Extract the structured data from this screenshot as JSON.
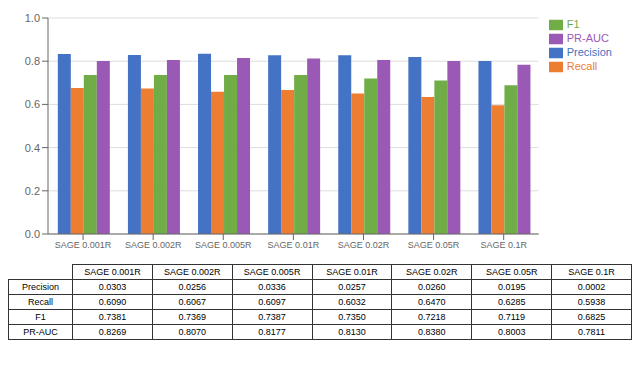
{
  "chart_data": {
    "type": "bar",
    "categories": [
      "SAGE 0.001R",
      "SAGE 0.002R",
      "SAGE 0.005R",
      "SAGE 0.01R",
      "SAGE 0.02R",
      "SAGE 0.05R",
      "SAGE 0.1R"
    ],
    "series": [
      {
        "name": "Precision",
        "color": "#4472c4",
        "values": [
          0.833,
          0.829,
          0.834,
          0.828,
          0.828,
          0.82,
          0.801
        ]
      },
      {
        "name": "Recall",
        "color": "#ed7d31",
        "values": [
          0.676,
          0.674,
          0.659,
          0.667,
          0.65,
          0.634,
          0.596
        ]
      },
      {
        "name": "F1",
        "color": "#70ad47",
        "values": [
          0.736,
          0.736,
          0.736,
          0.736,
          0.72,
          0.711,
          0.689
        ]
      },
      {
        "name": "PR-AUC",
        "color": "#9b59b6",
        "values": [
          0.801,
          0.806,
          0.815,
          0.812,
          0.806,
          0.801,
          0.784
        ]
      }
    ],
    "ylim": [
      0.0,
      1.0
    ],
    "yticks": [
      {
        "value": 0,
        "label": "0.0"
      },
      {
        "value": 0.2,
        "label": "0.2"
      },
      {
        "value": 0.4,
        "label": "0.4"
      },
      {
        "value": 0.6,
        "label": "0.6"
      },
      {
        "value": 0.8,
        "label": "0.8"
      },
      {
        "value": 1,
        "label": "1.0"
      }
    ],
    "grid": true,
    "legend": "right",
    "table": {
      "rows": [
        {
          "name": "Precision",
          "values": [
            0.0303,
            0.0256,
            0.0336,
            0.0257,
            0.026,
            0.0195,
            0.0002
          ],
          "value_labels": [
            "0.0303",
            "0.0256",
            "0.0336",
            "0.0257",
            "0.0260",
            "0.0195",
            "0.0002"
          ]
        },
        {
          "name": "Recall",
          "values": [
            0.609,
            0.6067,
            0.6097,
            0.6032,
            0.647,
            0.6285,
            0.5938
          ],
          "value_labels": [
            "0.6090",
            "0.6067",
            "0.6097",
            "0.6032",
            "0.6470",
            "0.6285",
            "0.5938"
          ]
        },
        {
          "name": "F1",
          "values": [
            0.7381,
            0.7369,
            0.7387,
            0.735,
            0.7218,
            0.7119,
            0.6825
          ],
          "value_labels": [
            "0.7381",
            "0.7369",
            "0.7387",
            "0.7350",
            "0.7218",
            "0.7119",
            "0.6825"
          ]
        },
        {
          "name": "PR-AUC",
          "values": [
            0.8269,
            0.807,
            0.8177,
            0.813,
            0.838,
            0.8003,
            0.7811
          ],
          "value_labels": [
            "0.8269",
            "0.8070",
            "0.8177",
            "0.8130",
            "0.8380",
            "0.8003",
            "0.7811"
          ]
        }
      ]
    }
  }
}
